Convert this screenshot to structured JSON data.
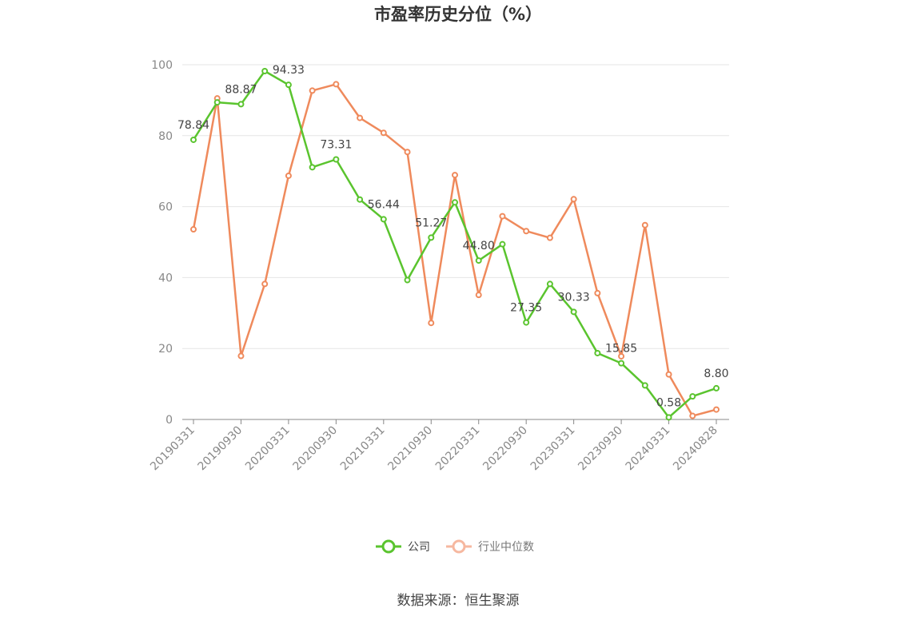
{
  "chart_data": {
    "type": "line",
    "title": "市盈率历史分位（%）",
    "xlabel": "",
    "ylabel": "",
    "ylim": [
      0,
      100
    ],
    "yticks": [
      0,
      20,
      40,
      60,
      80,
      100
    ],
    "grid": true,
    "legend_position": "bottom",
    "x": [
      "20190331",
      "20190630",
      "20190930",
      "20191231",
      "20200331",
      "20200630",
      "20200930",
      "20201231",
      "20210331",
      "20210630",
      "20210930",
      "20211231",
      "20220331",
      "20220630",
      "20220930",
      "20221231",
      "20230331",
      "20230630",
      "20230930",
      "20231231",
      "20240331",
      "20240630",
      "20240828"
    ],
    "xtick_labels": [
      "20190331",
      "20190930",
      "20200331",
      "20200930",
      "20210331",
      "20210930",
      "20220331",
      "20220930",
      "20230331",
      "20230930",
      "20240331",
      "20240828"
    ],
    "series": [
      {
        "name": "公司",
        "color": "#5ac42e",
        "values": [
          78.84,
          89.4,
          88.87,
          98.2,
          94.33,
          71.1,
          73.31,
          62.0,
          56.44,
          39.3,
          51.27,
          61.2,
          44.8,
          49.4,
          27.35,
          38.2,
          30.33,
          18.7,
          15.85,
          9.6,
          0.58,
          6.5,
          8.8
        ],
        "data_labels": [
          "78.84",
          "",
          "88.87",
          "",
          "94.33",
          "",
          "73.31",
          "",
          "56.44",
          "",
          "51.27",
          "",
          "44.80",
          "",
          "27.35",
          "",
          "30.33",
          "",
          "15.85",
          "",
          "0.58",
          "",
          "8.80"
        ]
      },
      {
        "name": "行业中位数",
        "color": "#ef8a5c",
        "values": [
          53.6,
          90.5,
          17.9,
          38.2,
          68.7,
          92.7,
          94.5,
          85.0,
          80.8,
          75.4,
          27.2,
          68.9,
          35.1,
          57.3,
          53.1,
          51.2,
          62.1,
          35.6,
          17.8,
          54.8,
          12.7,
          1.0,
          2.8
        ]
      }
    ]
  },
  "source": "数据来源：恒生聚源"
}
